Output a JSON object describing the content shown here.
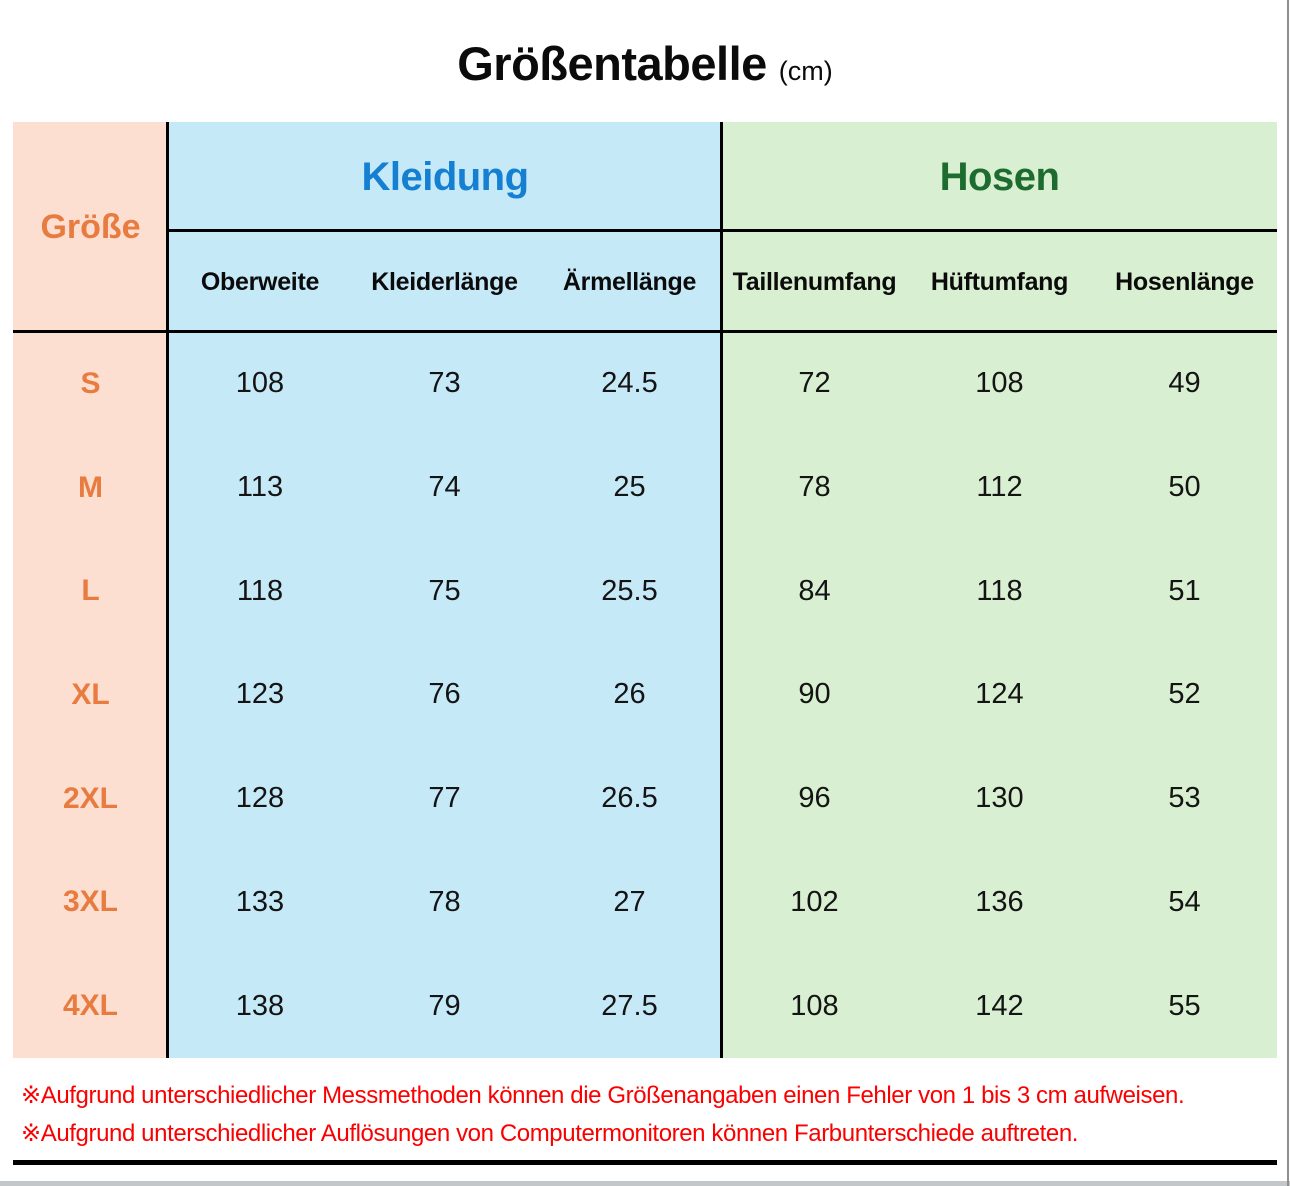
{
  "chart_data": {
    "type": "table",
    "title": "Größentabelle",
    "unit": "(cm)",
    "row_header": "Größe",
    "column_groups": [
      {
        "label": "Kleidung",
        "columns": [
          "Oberweite",
          "Kleiderlänge",
          "Ärmellänge"
        ]
      },
      {
        "label": "Hosen",
        "columns": [
          "Taillenumfang",
          "Hüftumfang",
          "Hosenlänge"
        ]
      }
    ],
    "rows": [
      {
        "size": "S",
        "values": [
          108,
          73,
          24.5,
          72,
          108,
          49
        ]
      },
      {
        "size": "M",
        "values": [
          113,
          74,
          25,
          78,
          112,
          50
        ]
      },
      {
        "size": "L",
        "values": [
          118,
          75,
          25.5,
          84,
          118,
          51
        ]
      },
      {
        "size": "XL",
        "values": [
          123,
          76,
          26,
          90,
          124,
          52
        ]
      },
      {
        "size": "2XL",
        "values": [
          128,
          77,
          26.5,
          96,
          130,
          53
        ]
      },
      {
        "size": "3XL",
        "values": [
          133,
          78,
          27,
          102,
          136,
          54
        ]
      },
      {
        "size": "4XL",
        "values": [
          138,
          79,
          27.5,
          108,
          142,
          55
        ]
      }
    ],
    "notes": [
      "※Aufgrund unterschiedlicher Messmethoden können die Größenangaben einen Fehler von 1 bis 3 cm aufweisen.",
      "※Aufgrund unterschiedlicher Auflösungen von Computermonitoren können Farbunterschiede auftreten."
    ]
  },
  "colors": {
    "size_column_bg": "#fcdfd0",
    "kleidung_bg": "#c6e9f8",
    "hosen_bg": "#d9efd1",
    "size_text": "#e87b40",
    "kleidung_text": "#1580d2",
    "hosen_text": "#1d6b2e",
    "note_text": "#fb0000",
    "grid_line": "#000000"
  }
}
